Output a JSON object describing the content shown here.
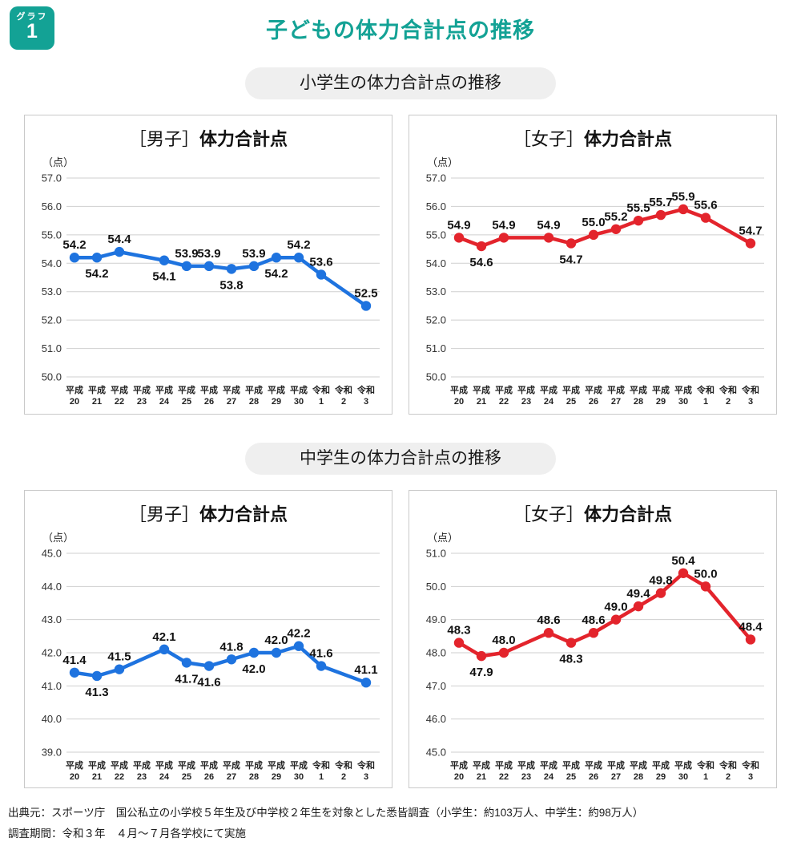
{
  "badge": {
    "label": "グラフ",
    "number": "1"
  },
  "page_title": "子どもの体力合計点の推移",
  "sections": [
    {
      "pill": "小学生の体力合計点の推移"
    },
    {
      "pill": "中学生の体力合計点の推移"
    }
  ],
  "footer": {
    "source": "出典元：スポーツ庁　国公私立の小学校５年生及び中学校２年生を対象とした悉皆調査（小学生：約103万人、中学生：約98万人）",
    "period": "調査期間：令和３年　４月～７月各学校にて実施"
  },
  "colors": {
    "accent_teal": "#13A295",
    "boys_blue": "#1E73DF",
    "girls_red": "#E3242C",
    "gridline": "#CFCFCF",
    "pill_bg": "#EFEFEF",
    "panel_border": "#C9C9C9"
  },
  "chart_data": [
    {
      "type": "line",
      "section": "小学生の体力合計点の推移",
      "title": "［男子］体力合計点",
      "title_bracket": "［男子］",
      "title_bold": "体力合計点",
      "ylabel": "（点）",
      "xlabel": "",
      "legend": "none",
      "grid": true,
      "line_color": "#1E73DF",
      "ylim": [
        50.0,
        57.0
      ],
      "yticks": [
        "57.0",
        "56.0",
        "55.0",
        "54.0",
        "53.0",
        "52.0",
        "51.0",
        "50.0"
      ],
      "categories": [
        "平成20",
        "平成21",
        "平成22",
        "平成23",
        "平成24",
        "平成25",
        "平成26",
        "平成27",
        "平成28",
        "平成29",
        "平成30",
        "令和1",
        "令和2",
        "令和3"
      ],
      "values": [
        54.2,
        54.2,
        54.4,
        null,
        54.1,
        53.9,
        53.9,
        53.8,
        53.9,
        54.2,
        54.2,
        53.6,
        null,
        52.5
      ],
      "label_side": [
        "above",
        "below",
        "above",
        null,
        "below",
        "above",
        "above",
        "below",
        "above",
        "below",
        "above",
        "above",
        null,
        "above"
      ]
    },
    {
      "type": "line",
      "section": "小学生の体力合計点の推移",
      "title": "［女子］体力合計点",
      "title_bracket": "［女子］",
      "title_bold": "体力合計点",
      "ylabel": "（点）",
      "xlabel": "",
      "legend": "none",
      "grid": true,
      "line_color": "#E3242C",
      "ylim": [
        50.0,
        57.0
      ],
      "yticks": [
        "57.0",
        "56.0",
        "55.0",
        "54.0",
        "53.0",
        "52.0",
        "51.0",
        "50.0"
      ],
      "categories": [
        "平成20",
        "平成21",
        "平成22",
        "平成23",
        "平成24",
        "平成25",
        "平成26",
        "平成27",
        "平成28",
        "平成29",
        "平成30",
        "令和1",
        "令和2",
        "令和3"
      ],
      "values": [
        54.9,
        54.6,
        54.9,
        null,
        54.9,
        54.7,
        55.0,
        55.2,
        55.5,
        55.7,
        55.9,
        55.6,
        null,
        54.7
      ],
      "label_side": [
        "above",
        "below",
        "above",
        null,
        "above",
        "below",
        "above",
        "above",
        "above",
        "above",
        "above",
        "above",
        null,
        "above"
      ]
    },
    {
      "type": "line",
      "section": "中学生の体力合計点の推移",
      "title": "［男子］体力合計点",
      "title_bracket": "［男子］",
      "title_bold": "体力合計点",
      "ylabel": "（点）",
      "xlabel": "",
      "legend": "none",
      "grid": true,
      "line_color": "#1E73DF",
      "ylim": [
        39.0,
        45.0
      ],
      "yticks": [
        "45.0",
        "44.0",
        "43.0",
        "42.0",
        "41.0",
        "40.0",
        "39.0"
      ],
      "categories": [
        "平成20",
        "平成21",
        "平成22",
        "平成23",
        "平成24",
        "平成25",
        "平成26",
        "平成27",
        "平成28",
        "平成29",
        "平成30",
        "令和1",
        "令和2",
        "令和3"
      ],
      "values": [
        41.4,
        41.3,
        41.5,
        null,
        42.1,
        41.7,
        41.6,
        41.8,
        42.0,
        42.0,
        42.2,
        41.6,
        null,
        41.1
      ],
      "label_side": [
        "above",
        "below",
        "above",
        null,
        "above",
        "below",
        "below",
        "above",
        "below",
        "above",
        "above",
        "above",
        null,
        "above"
      ]
    },
    {
      "type": "line",
      "section": "中学生の体力合計点の推移",
      "title": "［女子］体力合計点",
      "title_bracket": "［女子］",
      "title_bold": "体力合計点",
      "ylabel": "（点）",
      "xlabel": "",
      "legend": "none",
      "grid": true,
      "line_color": "#E3242C",
      "ylim": [
        45.0,
        51.0
      ],
      "yticks": [
        "51.0",
        "50.0",
        "49.0",
        "48.0",
        "47.0",
        "46.0",
        "45.0"
      ],
      "categories": [
        "平成20",
        "平成21",
        "平成22",
        "平成23",
        "平成24",
        "平成25",
        "平成26",
        "平成27",
        "平成28",
        "平成29",
        "平成30",
        "令和1",
        "令和2",
        "令和3"
      ],
      "values": [
        48.3,
        47.9,
        48.0,
        null,
        48.6,
        48.3,
        48.6,
        49.0,
        49.4,
        49.8,
        50.4,
        50.0,
        null,
        48.4
      ],
      "label_side": [
        "above",
        "below",
        "above",
        null,
        "above",
        "below",
        "above",
        "above",
        "above",
        "above",
        "above",
        "above",
        null,
        "above"
      ]
    }
  ]
}
